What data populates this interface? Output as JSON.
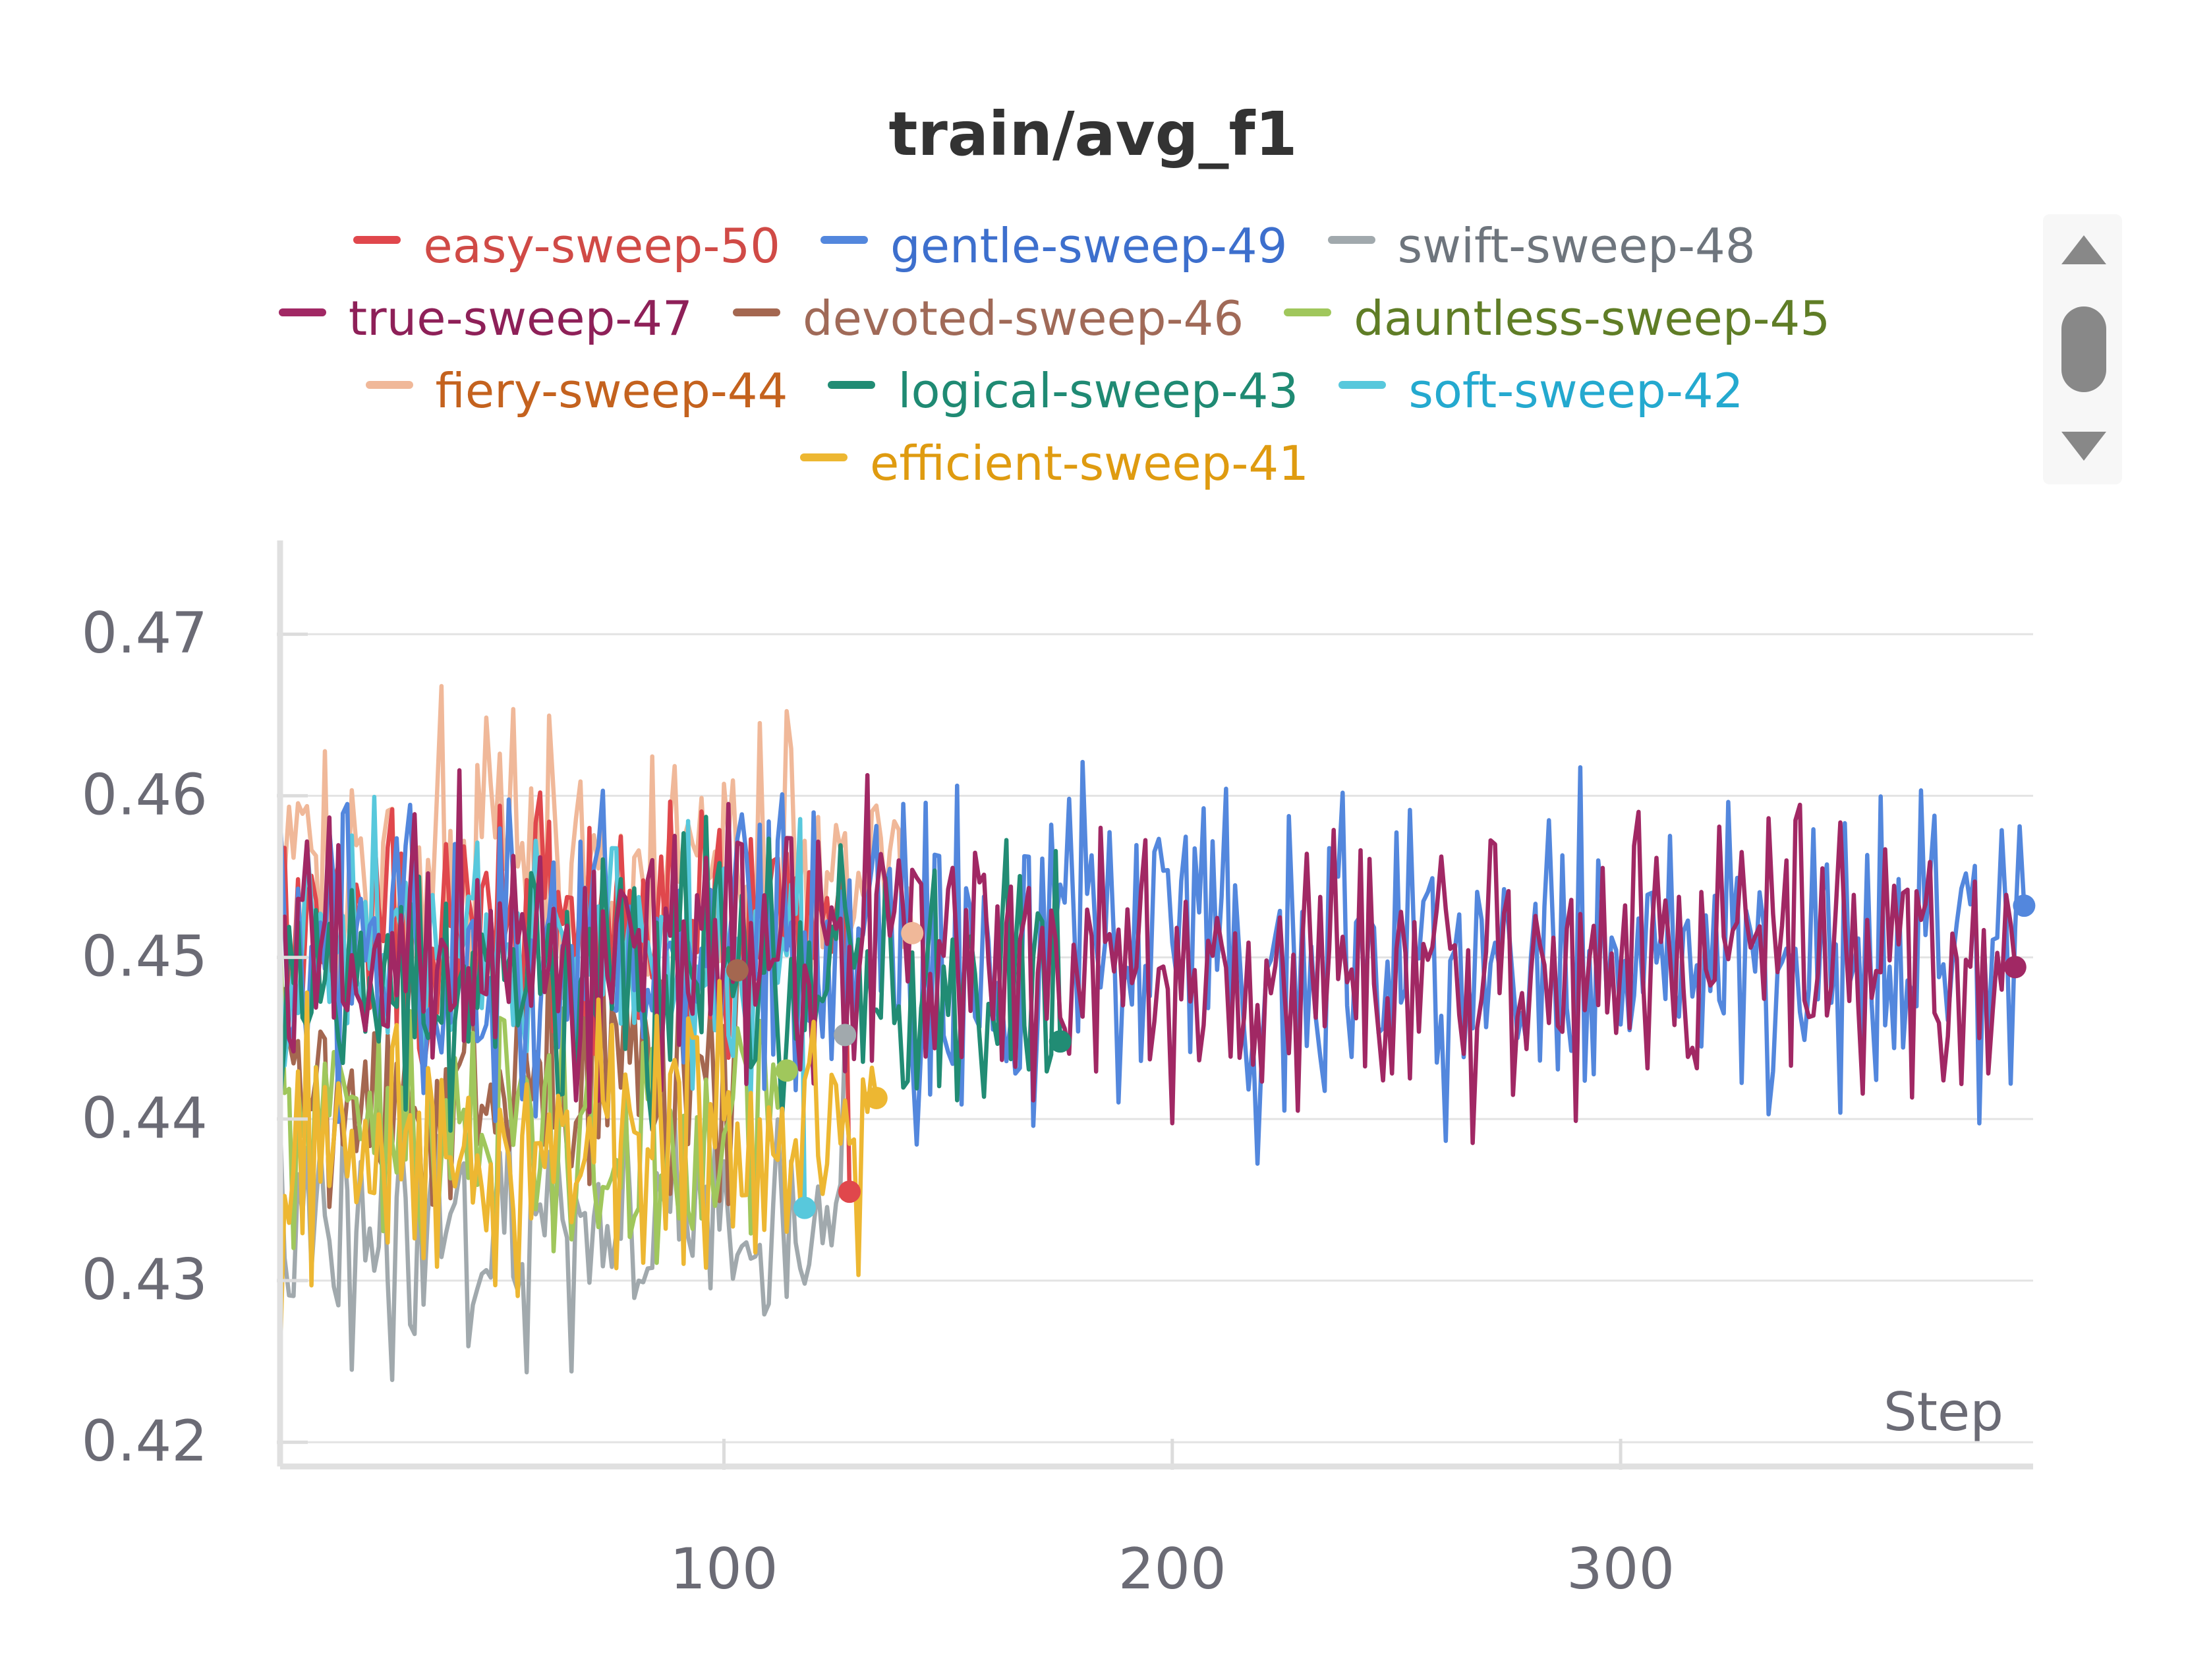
{
  "chart_data": {
    "type": "line",
    "title": "train/avg_f1",
    "xlabel": "Step",
    "ylabel": "",
    "xlim": [
      1,
      392
    ],
    "ylim": [
      0.4185,
      0.4758
    ],
    "xticks": [
      100,
      200,
      300
    ],
    "yticks": [
      0.42,
      0.43,
      0.44,
      0.45,
      0.46,
      0.47
    ],
    "ytick_labels": [
      "0.42",
      "0.43",
      "0.44",
      "0.45",
      "0.46",
      "0.47"
    ],
    "xtick_labels": [
      "100",
      "200",
      "300"
    ],
    "grid": true,
    "legend_position": "top",
    "series": [
      {
        "name": "easy-sweep-50",
        "color": "#e0474c",
        "text_color": "#d04a46",
        "last_step": 128,
        "end_value": 0.4355,
        "mean": 0.452,
        "amp": 0.0075,
        "start_value": 0.455
      },
      {
        "name": "gentle-sweep-49",
        "color": "#5387dd",
        "text_color": "#3d6fcd",
        "last_step": 390,
        "end_value": 0.4532,
        "mean": 0.4505,
        "amp": 0.0095,
        "start_value": 0.459
      },
      {
        "name": "swift-sweep-48",
        "color": "#a1a9ad",
        "text_color": "#6e757d",
        "last_step": 127,
        "end_value": 0.4452,
        "mean": 0.4335,
        "amp": 0.0075,
        "start_value": 0.44
      },
      {
        "name": "true-sweep-47",
        "color": "#a12864",
        "text_color": "#8e2058",
        "last_step": 388,
        "end_value": 0.4494,
        "mean": 0.45,
        "amp": 0.0085,
        "start_value": 0.452
      },
      {
        "name": "devoted-sweep-46",
        "color": "#a46750",
        "text_color": "#a06a58",
        "last_step": 103,
        "end_value": 0.4492,
        "mean": 0.4415,
        "amp": 0.0075,
        "start_value": 0.445
      },
      {
        "name": "dauntless-sweep-45",
        "color": "#a0c75c",
        "text_color": "#5f7d26",
        "last_step": 114,
        "end_value": 0.443,
        "mean": 0.4385,
        "amp": 0.0075,
        "start_value": 0.452
      },
      {
        "name": "fiery-sweep-44",
        "color": "#f0b899",
        "text_color": "#c4621e",
        "last_step": 142,
        "end_value": 0.4515,
        "mean": 0.4555,
        "amp": 0.0085,
        "start_value": 0.458
      },
      {
        "name": "logical-sweep-43",
        "color": "#218c74",
        "text_color": "#1f8a73",
        "last_step": 175,
        "end_value": 0.4448,
        "mean": 0.4485,
        "amp": 0.0075,
        "start_value": 0.441
      },
      {
        "name": "soft-sweep-42",
        "color": "#58c8dc",
        "text_color": "#24a9cf",
        "last_step": 118,
        "end_value": 0.4345,
        "mean": 0.4505,
        "amp": 0.0075,
        "start_value": 0.449
      },
      {
        "name": "efficient-sweep-41",
        "color": "#edb732",
        "text_color": "#df9b10",
        "last_step": 134,
        "end_value": 0.4413,
        "mean": 0.4385,
        "amp": 0.0085,
        "start_value": 0.425
      }
    ]
  }
}
